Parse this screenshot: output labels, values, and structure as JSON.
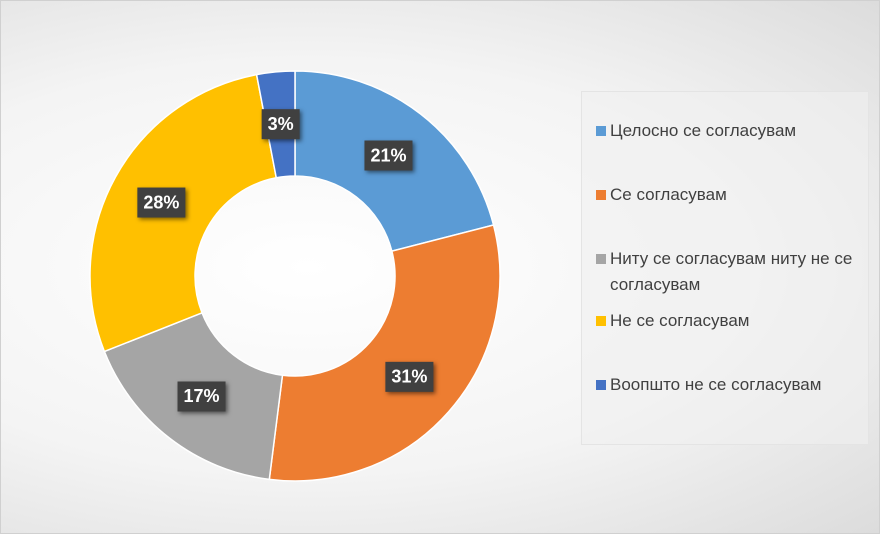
{
  "chart_data": {
    "type": "donut",
    "categories": [
      "Целосно се согласувам",
      "Се согласувам",
      "Ниту се согласувам ниту не се согласувам",
      "Не се согласувам",
      "Воопшто не се согласувам"
    ],
    "values": [
      21,
      31,
      17,
      28,
      3
    ],
    "value_labels": [
      "21%",
      "31%",
      "17%",
      "28%",
      "3%"
    ],
    "colors": [
      "#5b9bd5",
      "#ed7d31",
      "#a5a5a5",
      "#ffc000",
      "#4472c4"
    ],
    "legend": "right"
  }
}
